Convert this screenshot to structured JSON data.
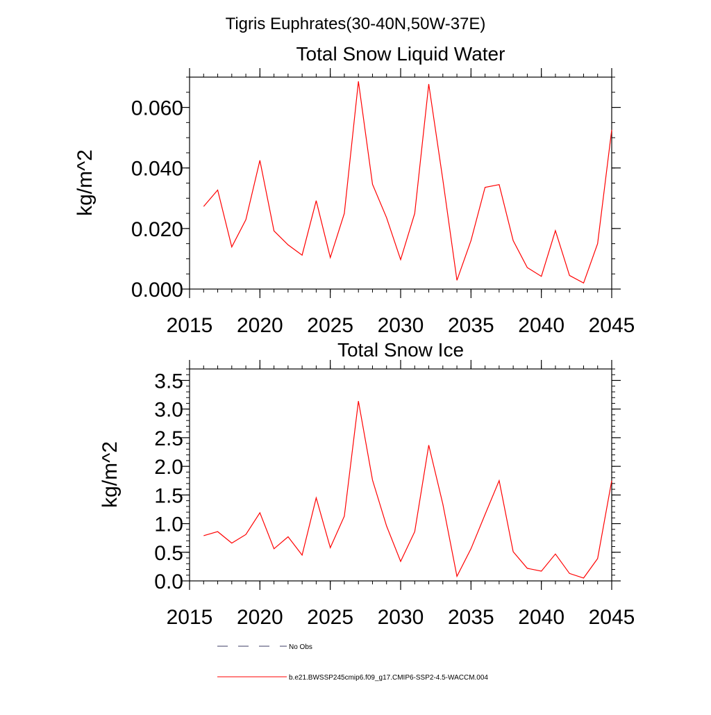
{
  "figure": {
    "main_title": "Tigris Euphrates(30-40N,50W-37E)"
  },
  "chart_data": [
    {
      "type": "line",
      "title": "Total Snow Liquid Water",
      "xlabel": "",
      "ylabel": "kg/m^2",
      "xlim": [
        2015,
        2045
      ],
      "ylim": [
        0,
        0.07
      ],
      "x_ticks": [
        2015,
        2020,
        2025,
        2030,
        2035,
        2040,
        2045
      ],
      "x_tick_labels": [
        "2015",
        "2020",
        "2025",
        "2030",
        "2035",
        "2040",
        "2045"
      ],
      "y_ticks": [
        0,
        0.02,
        0.04,
        0.06
      ],
      "y_tick_labels": [
        "0.000",
        "0.020",
        "0.040",
        "0.060"
      ],
      "grid": false,
      "series": [
        {
          "name": "b.e21.BWSSP245cmip6.f09_g17.CMIP6-SSP2-4.5-WACCM.004",
          "color": "#ff0000",
          "x": [
            2016,
            2017,
            2018,
            2019,
            2020,
            2021,
            2022,
            2023,
            2024,
            2025,
            2026,
            2027,
            2028,
            2029,
            2030,
            2031,
            2032,
            2033,
            2034,
            2035,
            2036,
            2037,
            2038,
            2039,
            2040,
            2041,
            2042,
            2043,
            2044,
            2045
          ],
          "values": [
            0.0273,
            0.0327,
            0.0139,
            0.0229,
            0.0425,
            0.0192,
            0.0146,
            0.0112,
            0.0292,
            0.0104,
            0.025,
            0.0686,
            0.0346,
            0.0236,
            0.0097,
            0.025,
            0.0677,
            0.0361,
            0.0029,
            0.016,
            0.0336,
            0.0345,
            0.016,
            0.0071,
            0.0042,
            0.0193,
            0.0045,
            0.002,
            0.015,
            0.0526
          ]
        }
      ]
    },
    {
      "type": "line",
      "title": "Total Snow Ice",
      "xlabel": "",
      "ylabel": "kg/m^2",
      "xlim": [
        2015,
        2045
      ],
      "ylim": [
        0,
        3.7
      ],
      "x_ticks": [
        2015,
        2020,
        2025,
        2030,
        2035,
        2040,
        2045
      ],
      "x_tick_labels": [
        "2015",
        "2020",
        "2025",
        "2030",
        "2035",
        "2040",
        "2045"
      ],
      "y_ticks": [
        0,
        0.5,
        1.0,
        1.5,
        2.0,
        2.5,
        3.0,
        3.5
      ],
      "y_tick_labels": [
        "0.0",
        "0.5",
        "1.0",
        "1.5",
        "2.0",
        "2.5",
        "3.0",
        "3.5"
      ],
      "grid": false,
      "series": [
        {
          "name": "b.e21.BWSSP245cmip6.f09_g17.CMIP6-SSP2-4.5-WACCM.004",
          "color": "#ff0000",
          "x": [
            2016,
            2017,
            2018,
            2019,
            2020,
            2021,
            2022,
            2023,
            2024,
            2025,
            2026,
            2027,
            2028,
            2029,
            2030,
            2031,
            2032,
            2033,
            2034,
            2035,
            2036,
            2037,
            2038,
            2039,
            2040,
            2041,
            2042,
            2043,
            2044,
            2045
          ],
          "values": [
            0.79,
            0.86,
            0.66,
            0.81,
            1.19,
            0.56,
            0.77,
            0.45,
            1.45,
            0.58,
            1.13,
            3.14,
            1.76,
            0.96,
            0.34,
            0.86,
            2.37,
            1.34,
            0.08,
            0.56,
            1.16,
            1.75,
            0.51,
            0.22,
            0.17,
            0.47,
            0.13,
            0.05,
            0.39,
            1.75
          ]
        }
      ]
    }
  ],
  "legend": {
    "placement": "bottom-left",
    "items": [
      {
        "label": "No Obs",
        "color": "#3c3c64",
        "style": "dashed"
      },
      {
        "label": "b.e21.BWSSP245cmip6.f09_g17.CMIP6-SSP2-4.5-WACCM.004",
        "color": "#ff0000",
        "style": "solid"
      }
    ]
  }
}
